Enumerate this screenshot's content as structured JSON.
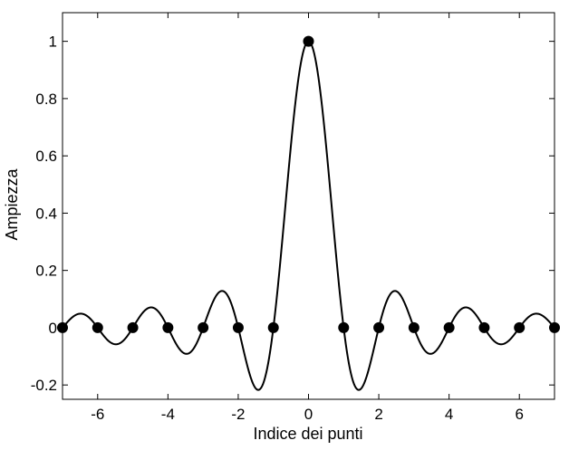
{
  "chart_data": {
    "type": "line",
    "title": "",
    "xlabel": "Indice dei punti",
    "ylabel": "Ampiezza",
    "xlim": [
      -7,
      7
    ],
    "ylim": [
      -0.25,
      1.1
    ],
    "xticks": [
      -6,
      -4,
      -2,
      0,
      2,
      4,
      6
    ],
    "xtick_labels": [
      "-6",
      "-4",
      "-2",
      "0",
      "2",
      "4",
      "6"
    ],
    "yticks": [
      -0.2,
      0,
      0.2,
      0.4,
      0.6,
      0.8,
      1
    ],
    "ytick_labels": [
      "-0.2",
      "0",
      "0.2",
      "0.4",
      "0.6",
      "0.8",
      "1"
    ],
    "grid": false,
    "line_color": "#000000",
    "marker_color": "#000000",
    "series": [
      {
        "kind": "curve",
        "function": "sinc",
        "x_range": [
          -7,
          7
        ]
      },
      {
        "kind": "points",
        "x": [
          -7,
          -6,
          -5,
          -4,
          -3,
          -2,
          -1,
          0,
          1,
          2,
          3,
          4,
          5,
          6,
          7
        ],
        "y": [
          0,
          0,
          0,
          0,
          0,
          0,
          0,
          1,
          0,
          0,
          0,
          0,
          0,
          0,
          0
        ]
      }
    ]
  }
}
